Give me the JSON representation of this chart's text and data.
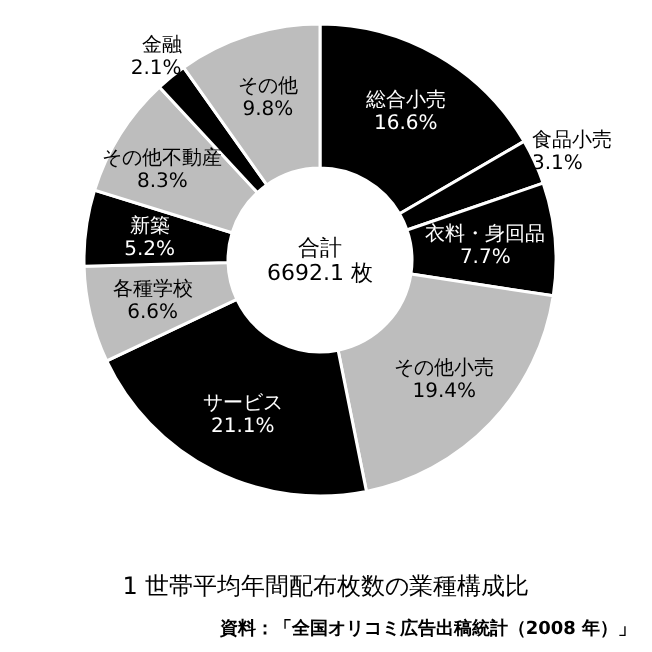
{
  "chart_data": {
    "type": "donut",
    "title": "1 世帯平均年間配布枚数の業種構成比",
    "categories": [
      "総合小売",
      "食品小売",
      "衣料・身回品",
      "その他小売",
      "サービス",
      "各種学校",
      "新築",
      "その他不動産",
      "金融",
      "その他"
    ],
    "values": [
      16.6,
      3.1,
      7.7,
      19.4,
      21.1,
      6.6,
      5.2,
      8.3,
      2.1,
      9.8
    ],
    "colors": [
      "#000000",
      "#000000",
      "#000000",
      "#bdbdbd",
      "#000000",
      "#bdbdbd",
      "#000000",
      "#bdbdbd",
      "#000000",
      "#bdbdbd"
    ],
    "value_labels": [
      "16.6%",
      "3.1%",
      "7.7%",
      "19.4%",
      "21.1%",
      "6.6%",
      "5.2%",
      "8.3%",
      "2.1%",
      "9.8%"
    ],
    "annotations": [
      "合計\n6692.1 枚",
      "資料：「全国オリコミ広告出稿統計（2008 年）」"
    ]
  }
}
